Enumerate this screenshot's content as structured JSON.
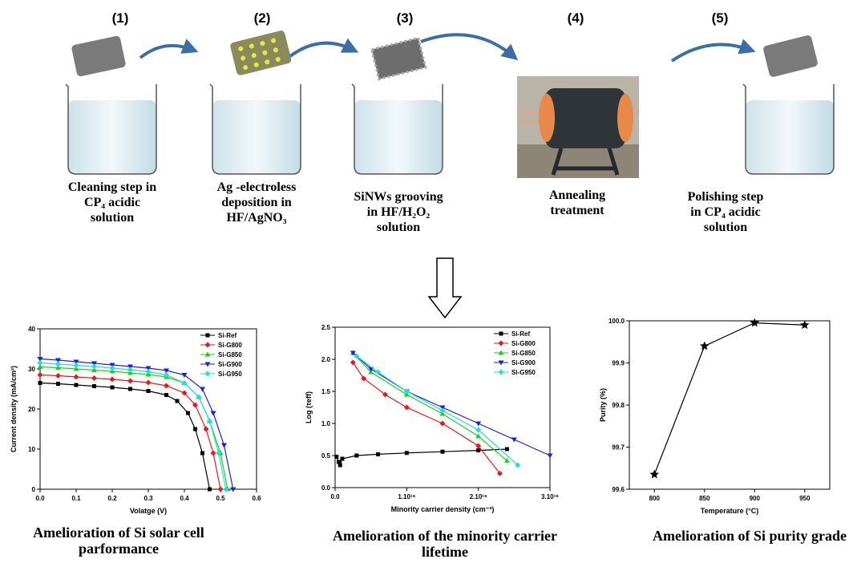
{
  "steps": [
    {
      "label": "(1)",
      "caption": [
        "Cleaning step in",
        "CP₄ acidic",
        "solution"
      ]
    },
    {
      "label": "(2)",
      "caption": [
        "Ag -electroless",
        "deposition in",
        "HF/AgNO₃"
      ]
    },
    {
      "label": "(3)",
      "caption": [
        "SiNWs grooving",
        "in HF/H₂O₂",
        "solution"
      ]
    },
    {
      "label": "(4)",
      "caption": [
        "Annealing",
        "treatment"
      ]
    },
    {
      "label": "(5)",
      "caption": [
        "Polishing step",
        "in CP₄ acidic",
        "solution"
      ]
    }
  ],
  "chart_data": [
    {
      "type": "line",
      "caption": [
        "Amelioration of Si solar cell",
        "parformance"
      ],
      "x_label": "Volatge (V)",
      "y_label": "Current density (mA/cm²)",
      "xlim": [
        0,
        0.6
      ],
      "xticks": [
        {
          "value": 0,
          "label": "0.0"
        },
        0.1,
        0.2,
        0.3,
        0.4,
        0.5,
        0.6
      ],
      "ylim": [
        0,
        40
      ],
      "yticks": [
        0,
        10,
        20,
        30,
        40
      ],
      "series": [
        {
          "name": "Si-Ref",
          "color": "#000000",
          "marker": "square",
          "x": [
            0,
            0.05,
            0.1,
            0.15,
            0.2,
            0.25,
            0.3,
            0.35,
            0.38,
            0.41,
            0.43,
            0.45,
            0.47
          ],
          "values": [
            26.5,
            26.3,
            26,
            25.7,
            25.4,
            25,
            24.5,
            23.5,
            22,
            19,
            15,
            9,
            0
          ]
        },
        {
          "name": "Si-G800",
          "color": "#e41a1c",
          "marker": "diamond",
          "x": [
            0,
            0.05,
            0.1,
            0.15,
            0.2,
            0.25,
            0.3,
            0.35,
            0.4,
            0.43,
            0.46,
            0.48,
            0.5
          ],
          "values": [
            28.5,
            28.3,
            28,
            27.7,
            27.4,
            27,
            26.6,
            25.8,
            24,
            21,
            15,
            9,
            0
          ]
        },
        {
          "name": "Si-G850",
          "color": "#22cc22",
          "marker": "triangle-up",
          "x": [
            0,
            0.05,
            0.1,
            0.15,
            0.2,
            0.25,
            0.3,
            0.35,
            0.4,
            0.44,
            0.47,
            0.5,
            0.52
          ],
          "values": [
            30.5,
            30.3,
            30,
            29.7,
            29.4,
            29,
            28.6,
            28,
            26.5,
            23,
            17,
            9,
            0
          ]
        },
        {
          "name": "Si-G900",
          "color": "#1f1fdd",
          "marker": "triangle-down",
          "x": [
            0,
            0.05,
            0.1,
            0.15,
            0.2,
            0.25,
            0.3,
            0.35,
            0.4,
            0.45,
            0.48,
            0.51,
            0.535
          ],
          "values": [
            32.5,
            32.2,
            31.8,
            31.4,
            31,
            30.6,
            30.2,
            29.6,
            28.5,
            25,
            19,
            11,
            0
          ]
        },
        {
          "name": "Si-G950",
          "color": "#22dddd",
          "marker": "diamond",
          "x": [
            0,
            0.05,
            0.1,
            0.15,
            0.2,
            0.25,
            0.3,
            0.35,
            0.4,
            0.44,
            0.47,
            0.495,
            0.515
          ],
          "values": [
            31.5,
            31.2,
            30.9,
            30.6,
            30.2,
            29.8,
            29.3,
            28.5,
            26.5,
            23,
            17,
            9,
            0
          ]
        }
      ]
    },
    {
      "type": "line",
      "caption": [
        "Amelioration of the minority carrier",
        "lifetime"
      ],
      "x_label": "Minority carrier density (cm⁻³)",
      "y_label": "Log (τeff)",
      "xlim": [
        0,
        3e+16
      ],
      "xticks": [
        {
          "value": 0,
          "label": "0.0"
        },
        {
          "value": 1e+16,
          "label": "1.10¹⁶"
        },
        {
          "value": 2e+16,
          "label": "2.10¹⁶"
        },
        {
          "value": 3e+16,
          "label": "3.10¹⁶"
        }
      ],
      "ylim": [
        0,
        2.5
      ],
      "yticks": [
        {
          "value": 0,
          "label": "0.0"
        },
        0.5,
        {
          "value": 1,
          "label": "1.0"
        },
        1.5,
        {
          "value": 2,
          "label": "2.0"
        },
        2.5
      ],
      "series": [
        {
          "name": "Si-Ref",
          "color": "#000000",
          "marker": "square",
          "x": [
            200000000000000.0,
            500000000000000.0,
            700000000000000.0,
            1000000000000000.0,
            3000000000000000.0,
            6000000000000000.0,
            1e+16,
            1.5e+16,
            2e+16,
            2.4e+16
          ],
          "values": [
            0.48,
            0.4,
            0.35,
            0.45,
            0.5,
            0.52,
            0.54,
            0.56,
            0.58,
            0.6
          ]
        },
        {
          "name": "Si-G800",
          "color": "#e41a1c",
          "marker": "diamond",
          "x": [
            2500000000000000.0,
            4000000000000000.0,
            7000000000000000.0,
            1e+16,
            1.5e+16,
            2e+16,
            2.3e+16
          ],
          "values": [
            1.95,
            1.7,
            1.45,
            1.25,
            1.0,
            0.65,
            0.22
          ]
        },
        {
          "name": "Si-G850",
          "color": "#22cc22",
          "marker": "triangle-up",
          "x": [
            2500000000000000.0,
            5000000000000000.0,
            1e+16,
            1.5e+16,
            2e+16,
            2.4e+16
          ],
          "values": [
            2.1,
            1.8,
            1.45,
            1.15,
            0.8,
            0.42
          ]
        },
        {
          "name": "Si-G900",
          "color": "#1f1fdd",
          "marker": "triangle-down",
          "x": [
            2500000000000000.0,
            5000000000000000.0,
            1e+16,
            1.5e+16,
            2e+16,
            2.5e+16,
            3e+16
          ],
          "values": [
            2.1,
            1.85,
            1.5,
            1.25,
            1.0,
            0.75,
            0.5
          ]
        },
        {
          "name": "Si-G950",
          "color": "#22dddd",
          "marker": "diamond",
          "x": [
            3000000000000000.0,
            6000000000000000.0,
            1e+16,
            1.5e+16,
            2e+16,
            2.55e+16
          ],
          "values": [
            2.05,
            1.8,
            1.5,
            1.2,
            0.9,
            0.35
          ]
        }
      ]
    },
    {
      "type": "line",
      "caption": [
        "Amelioration of Si purity grade"
      ],
      "x_label": "Temperature (°C)",
      "y_label": "Purity (%)",
      "xlim": [
        775,
        975
      ],
      "xticks": [
        800,
        850,
        900,
        950
      ],
      "ylim": [
        99.6,
        100.0
      ],
      "yticks": [
        99.6,
        99.7,
        99.8,
        99.9,
        {
          "value": 100,
          "label": "100.0"
        }
      ],
      "series": [
        {
          "color": "#000000",
          "marker": "star",
          "x": [
            800,
            850,
            900,
            950
          ],
          "values": [
            99.635,
            99.94,
            99.995,
            99.99
          ]
        }
      ]
    }
  ]
}
